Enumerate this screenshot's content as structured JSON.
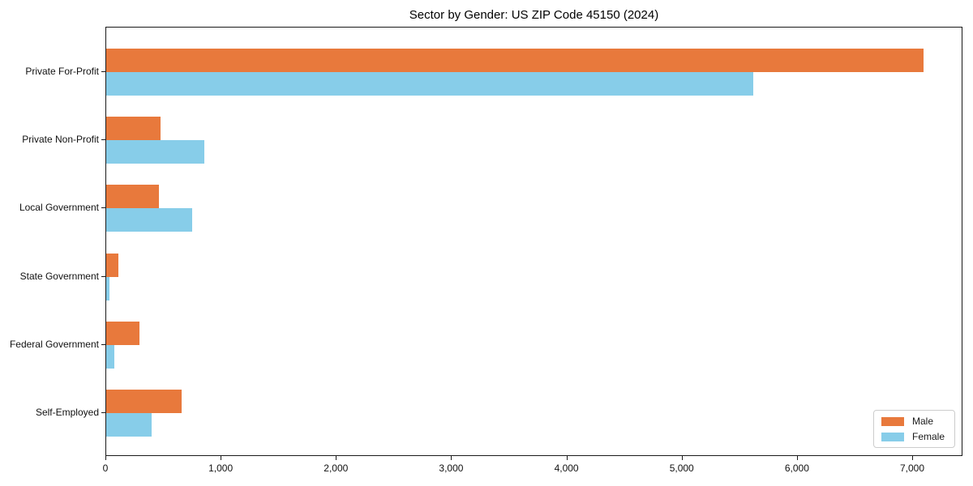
{
  "chart_data": {
    "type": "bar",
    "orientation": "horizontal",
    "title": "Sector by Gender: US ZIP Code 45150 (2024)",
    "categories": [
      "Private For-Profit",
      "Private Non-Profit",
      "Local Government",
      "State Government",
      "Federal Government",
      "Self-Employed"
    ],
    "series": [
      {
        "name": "Male",
        "color": "#e8793c",
        "values": [
          7090,
          470,
          455,
          105,
          290,
          655
        ]
      },
      {
        "name": "Female",
        "color": "#87cde9",
        "values": [
          5615,
          850,
          745,
          30,
          70,
          395
        ]
      }
    ],
    "xlabel": "",
    "ylabel": "",
    "xlim": [
      0,
      7436
    ],
    "x_ticks": [
      0,
      1000,
      2000,
      3000,
      4000,
      5000,
      6000,
      7000
    ],
    "x_tick_labels": [
      "0",
      "1,000",
      "2,000",
      "3,000",
      "4,000",
      "5,000",
      "6,000",
      "7,000"
    ],
    "grid": false,
    "legend_position": "lower right",
    "colors": {
      "male": "#e8793c",
      "female": "#87cde9",
      "axis": "#1a1a1a",
      "legend_border": "#cccccc"
    }
  }
}
